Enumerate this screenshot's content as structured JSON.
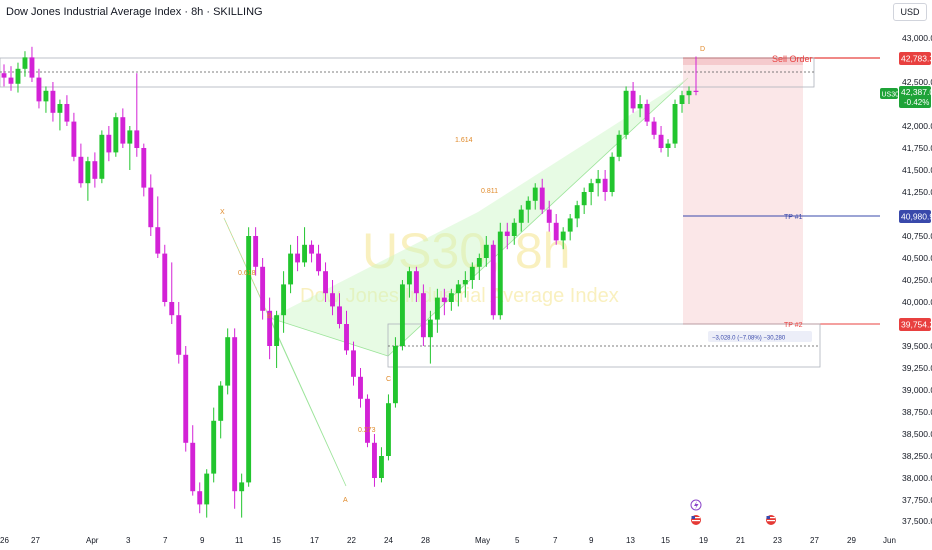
{
  "header": {
    "title": "Dow Jones Industrial Average Index · 8h · SKILLING",
    "currency": "USD"
  },
  "watermark": {
    "symbol": "US30, 8h",
    "name": "Dow Jones Industrial Average Index"
  },
  "price_axis": {
    "labels": [
      "43,000.0",
      "42,500.0",
      "42,000.0",
      "41,750.0",
      "41,500.0",
      "41,250.0",
      "40,750.0",
      "40,500.0",
      "40,250.0",
      "40,000.0",
      "39,500.0",
      "39,250.0",
      "39,000.0",
      "38,750.0",
      "38,500.0",
      "38,250.0",
      "38,000.0",
      "37,750.0",
      "37,500.0"
    ]
  },
  "price_tags": {
    "sell": "42,783.3",
    "symbol": "US30",
    "last": "42,387.0",
    "change": "-0.42%",
    "tp1": "40,980.9",
    "tp2": "39,754.2"
  },
  "annotations": {
    "sell_order": "Sell Order",
    "tp1": "TP #1",
    "tp2": "TP #2",
    "measure": "−3,028.0 (−7.08%) −30,280"
  },
  "pattern": {
    "points": [
      "X",
      "A",
      "B",
      "C",
      "D"
    ],
    "ratios": [
      "0.618",
      "0.273",
      "1.614",
      "0.811"
    ]
  },
  "time_axis": {
    "labels": [
      "26",
      "27",
      "Apr",
      "3",
      "7",
      "9",
      "11",
      "15",
      "17",
      "22",
      "24",
      "28",
      "May",
      "5",
      "7",
      "9",
      "13",
      "15",
      "19",
      "21",
      "23",
      "27",
      "29",
      "Jun"
    ]
  },
  "colors": {
    "bull": "#22c52e",
    "bear": "#d322d6",
    "sell": "#e8403f",
    "tp1": "#3949ab",
    "last": "#1ea338",
    "pattern": "#e08a2a"
  },
  "chart_data": {
    "type": "candlestick",
    "symbol": "US30",
    "timeframe": "8h",
    "ylim": [
      37400,
      43150
    ],
    "grid": false,
    "last_price": 42387.0,
    "change_pct": -0.42,
    "levels": [
      {
        "name": "Sell Order",
        "value": 42783.3
      },
      {
        "name": "TP #1",
        "value": 40980.9
      },
      {
        "name": "TP #2",
        "value": 39754.2
      }
    ],
    "harmonic_pattern": [
      {
        "point": "X",
        "value": 40800
      },
      {
        "point": "A",
        "value": 37950
      },
      {
        "point": "B",
        "value": 39820
      },
      {
        "point": "C",
        "value": 39400
      },
      {
        "point": "D",
        "value": 42790
      }
    ],
    "candles": [
      [
        42600,
        42700,
        42450,
        42550
      ],
      [
        42550,
        42680,
        42400,
        42480
      ],
      [
        42480,
        42720,
        42380,
        42650
      ],
      [
        42650,
        42850,
        42560,
        42780
      ],
      [
        42780,
        42900,
        42500,
        42550
      ],
      [
        42550,
        42650,
        42200,
        42280
      ],
      [
        42280,
        42450,
        42150,
        42400
      ],
      [
        42400,
        42500,
        42050,
        42150
      ],
      [
        42150,
        42300,
        41950,
        42250
      ],
      [
        42250,
        42350,
        42000,
        42050
      ],
      [
        42050,
        42150,
        41600,
        41650
      ],
      [
        41650,
        41800,
        41300,
        41350
      ],
      [
        41350,
        41650,
        41150,
        41600
      ],
      [
        41600,
        41700,
        41300,
        41400
      ],
      [
        41400,
        41950,
        41350,
        41900
      ],
      [
        41900,
        42000,
        41600,
        41700
      ],
      [
        41700,
        42150,
        41650,
        42100
      ],
      [
        42100,
        42200,
        41750,
        41800
      ],
      [
        41800,
        42000,
        41500,
        41950
      ],
      [
        41950,
        42600,
        41650,
        41750
      ],
      [
        41750,
        41800,
        41200,
        41300
      ],
      [
        41300,
        41450,
        40750,
        40850
      ],
      [
        40850,
        41200,
        40500,
        40550
      ],
      [
        40550,
        40650,
        39950,
        40000
      ],
      [
        40000,
        40450,
        39750,
        39850
      ],
      [
        39850,
        40000,
        39300,
        39400
      ],
      [
        39400,
        39500,
        38300,
        38400
      ],
      [
        38400,
        38600,
        37800,
        37850
      ],
      [
        37850,
        37950,
        37600,
        37700
      ],
      [
        37700,
        38100,
        37550,
        38050
      ],
      [
        38050,
        38800,
        37950,
        38650
      ],
      [
        38650,
        39100,
        38450,
        39050
      ],
      [
        39050,
        39700,
        38950,
        39600
      ],
      [
        39600,
        39700,
        37650,
        37850
      ],
      [
        37850,
        38050,
        37550,
        37950
      ],
      [
        37950,
        40850,
        37900,
        40750
      ],
      [
        40750,
        40850,
        40300,
        40400
      ],
      [
        40400,
        40500,
        39800,
        39900
      ],
      [
        39900,
        40050,
        39350,
        39500
      ],
      [
        39500,
        39900,
        39250,
        39850
      ],
      [
        39850,
        40350,
        39650,
        40200
      ],
      [
        40200,
        40650,
        40100,
        40550
      ],
      [
        40550,
        40750,
        40350,
        40450
      ],
      [
        40450,
        40850,
        40400,
        40650
      ],
      [
        40650,
        40700,
        40450,
        40550
      ],
      [
        40550,
        40650,
        40300,
        40350
      ],
      [
        40350,
        40450,
        40000,
        40100
      ],
      [
        40100,
        40250,
        39850,
        39950
      ],
      [
        39950,
        40100,
        39700,
        39750
      ],
      [
        39750,
        39900,
        39400,
        39450
      ],
      [
        39450,
        39550,
        39050,
        39150
      ],
      [
        39150,
        39250,
        38800,
        38900
      ],
      [
        38900,
        38950,
        38350,
        38400
      ],
      [
        38400,
        38500,
        37900,
        38000
      ],
      [
        38000,
        38350,
        37950,
        38250
      ],
      [
        38250,
        38950,
        38200,
        38850
      ],
      [
        38850,
        39600,
        38800,
        39500
      ],
      [
        39500,
        40250,
        39450,
        40200
      ],
      [
        40200,
        40400,
        40050,
        40350
      ],
      [
        40350,
        40400,
        40000,
        40100
      ],
      [
        40100,
        40200,
        39500,
        39600
      ],
      [
        39600,
        39900,
        39300,
        39800
      ],
      [
        39800,
        40150,
        39650,
        40050
      ],
      [
        40050,
        40150,
        39850,
        40000
      ],
      [
        40000,
        40150,
        39900,
        40100
      ],
      [
        40100,
        40250,
        39950,
        40200
      ],
      [
        40200,
        40350,
        40050,
        40250
      ],
      [
        40250,
        40450,
        40150,
        40400
      ],
      [
        40400,
        40550,
        40250,
        40500
      ],
      [
        40500,
        40750,
        40400,
        40650
      ],
      [
        40650,
        40700,
        39800,
        39850
      ],
      [
        39850,
        40900,
        39800,
        40800
      ],
      [
        40800,
        40900,
        40600,
        40750
      ],
      [
        40750,
        40950,
        40650,
        40900
      ],
      [
        40900,
        41100,
        40800,
        41050
      ],
      [
        41050,
        41200,
        40900,
        41150
      ],
      [
        41150,
        41350,
        41050,
        41300
      ],
      [
        41300,
        41400,
        41000,
        41050
      ],
      [
        41050,
        41150,
        40800,
        40900
      ],
      [
        40900,
        41000,
        40650,
        40700
      ],
      [
        40700,
        40850,
        40600,
        40800
      ],
      [
        40800,
        41000,
        40700,
        40950
      ],
      [
        40950,
        41150,
        40850,
        41100
      ],
      [
        41100,
        41300,
        41000,
        41250
      ],
      [
        41250,
        41400,
        41100,
        41350
      ],
      [
        41350,
        41500,
        41200,
        41400
      ],
      [
        41400,
        41500,
        41150,
        41250
      ],
      [
        41250,
        41700,
        41200,
        41650
      ],
      [
        41650,
        41950,
        41600,
        41900
      ],
      [
        41900,
        42450,
        41850,
        42400
      ],
      [
        42400,
        42500,
        42150,
        42200
      ],
      [
        42200,
        42350,
        42100,
        42250
      ],
      [
        42250,
        42300,
        42000,
        42050
      ],
      [
        42050,
        42100,
        41850,
        41900
      ],
      [
        41900,
        42000,
        41700,
        41750
      ],
      [
        41750,
        41850,
        41650,
        41800
      ],
      [
        41800,
        42300,
        41750,
        42250
      ],
      [
        42250,
        42400,
        42150,
        42350
      ],
      [
        42350,
        42450,
        42250,
        42400
      ],
      [
        42400,
        42790,
        42350,
        42387
      ]
    ]
  }
}
